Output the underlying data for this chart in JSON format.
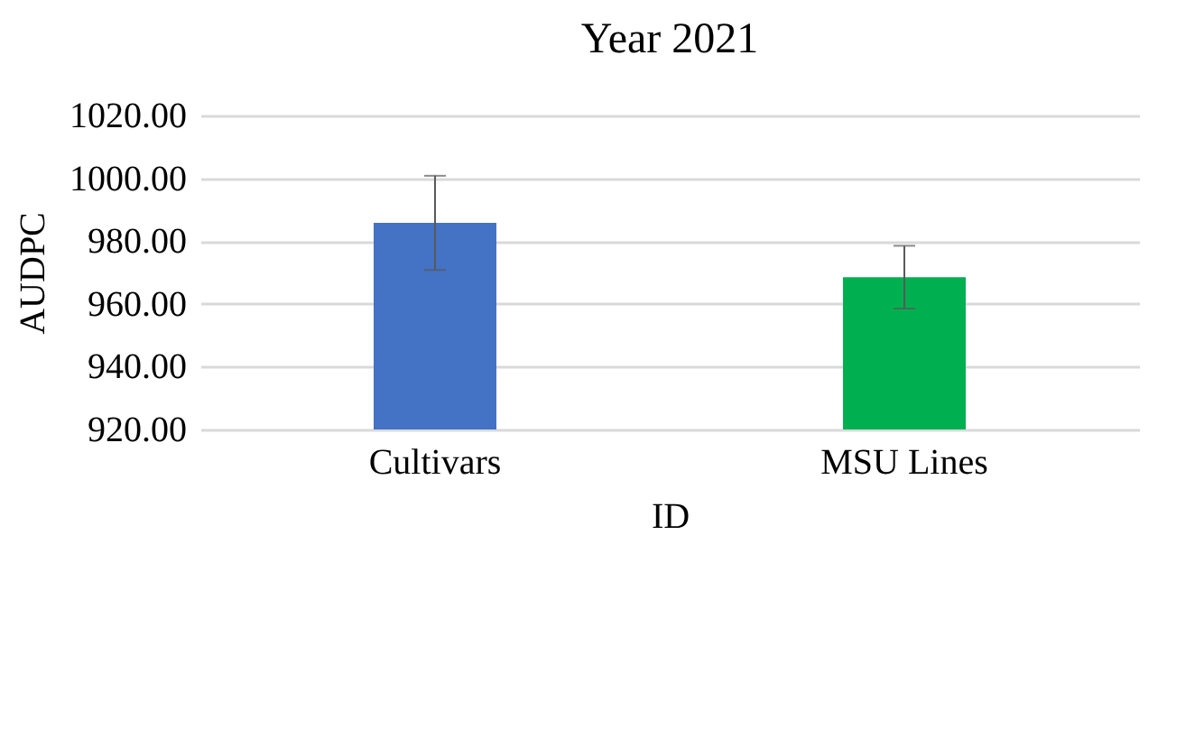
{
  "chart_data": {
    "type": "bar",
    "title": "Year 2021",
    "xlabel": "ID",
    "ylabel": "AUDPC",
    "categories": [
      "Cultivars",
      "MSU Lines"
    ],
    "values": [
      985.8,
      968.5
    ],
    "colors": [
      "#4472c4",
      "#00b050"
    ],
    "errors": [
      15,
      10
    ],
    "ylim": [
      920,
      1020
    ],
    "yticks": [
      {
        "value": 920,
        "label": "920.00"
      },
      {
        "value": 940,
        "label": "940.00"
      },
      {
        "value": 960,
        "label": "960.00"
      },
      {
        "value": 980,
        "label": "980.00"
      },
      {
        "value": 1000,
        "label": "1000.00"
      },
      {
        "value": 1020,
        "label": "1020.00"
      }
    ],
    "grid": "y"
  }
}
